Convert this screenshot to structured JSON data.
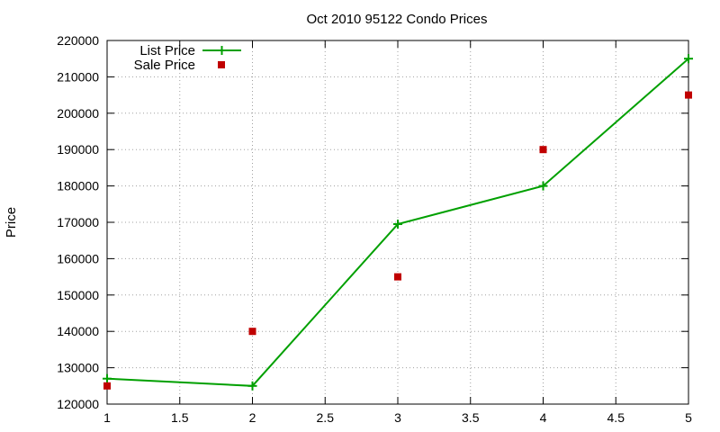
{
  "chart_data": {
    "type": "line",
    "title": "Oct 2010 95122 Condo Prices",
    "xlabel": "",
    "ylabel": "Price",
    "xlim": [
      1,
      5
    ],
    "ylim": [
      120000,
      220000
    ],
    "xticks": [
      "1",
      "1.5",
      "2",
      "2.5",
      "3",
      "3.5",
      "4",
      "4.5",
      "5"
    ],
    "yticks": [
      "120000",
      "130000",
      "140000",
      "150000",
      "160000",
      "170000",
      "180000",
      "190000",
      "200000",
      "210000",
      "220000"
    ],
    "grid": true,
    "legend_position": "top-left",
    "series": [
      {
        "name": "List Price",
        "style": "line-with-plus-markers",
        "color": "#00a000",
        "x": [
          1,
          2,
          3,
          4,
          5
        ],
        "y": [
          127000,
          125000,
          169500,
          180000,
          215000
        ]
      },
      {
        "name": "Sale Price",
        "style": "square-markers",
        "color": "#c00000",
        "x": [
          1,
          2,
          3,
          4,
          5
        ],
        "y": [
          125000,
          140000,
          155000,
          190000,
          205000
        ]
      }
    ]
  }
}
